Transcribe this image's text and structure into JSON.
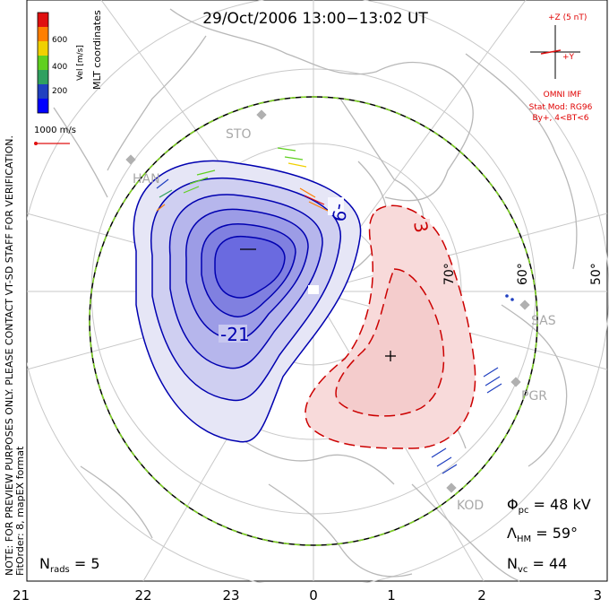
{
  "title": "29/Oct/2006 13:00−13:02 UT",
  "side_note_line1": "NOTE: FOR PREVIEW PURPOSES ONLY. PLEASE CONTACT VT-SD STAFF FOR VERIFICATION.",
  "side_note_line2": "FitOrder: 8, mapEX format",
  "coords_label": "MLT coordinates",
  "vel_scale": {
    "label": "Vel [m/s]",
    "ticks": [
      "600",
      "400",
      "200"
    ],
    "colors": [
      "#e01010",
      "#ff7f00",
      "#f0d000",
      "#60d020",
      "#30a060",
      "#2040c0",
      "#0000ff"
    ]
  },
  "ref_vector_label": "1000 m/s",
  "imf": {
    "axis_z": "+Z (5 nT)",
    "axis_y": "+Y",
    "source": "OMNI IMF",
    "stat_model": "Stat Mod: RG96",
    "condition": "By+, 4<BT<6"
  },
  "stations": [
    "STO",
    "HAN",
    "SAS",
    "PGR",
    "KOD"
  ],
  "lat_labels": [
    "70°",
    "60°",
    "50°"
  ],
  "contours": {
    "neg_label": "-21",
    "neg_label2": "-9",
    "pos_label": "3"
  },
  "stats": {
    "phi_sym": "Φ",
    "phi_sub": "pc",
    "phi_val": " = 48 kV",
    "lam_sym": "Λ",
    "lam_sub": "HM",
    "lam_val": " = 59°",
    "nvc_sym": "N",
    "nvc_sub": "vc",
    "nvc_val": " = 44",
    "nrad_sym": "N",
    "nrad_sub": "rads",
    "nrad_val": " = 5"
  },
  "mlt_ticks": [
    "21",
    "22",
    "23",
    "0",
    "1",
    "2",
    "3"
  ],
  "colors": {
    "neg": "#0000b0",
    "neg_fill": "#5a5ae6",
    "pos": "#cc0000",
    "pos_fill": "#f6c8c8",
    "land": "#b8b8b8"
  }
}
